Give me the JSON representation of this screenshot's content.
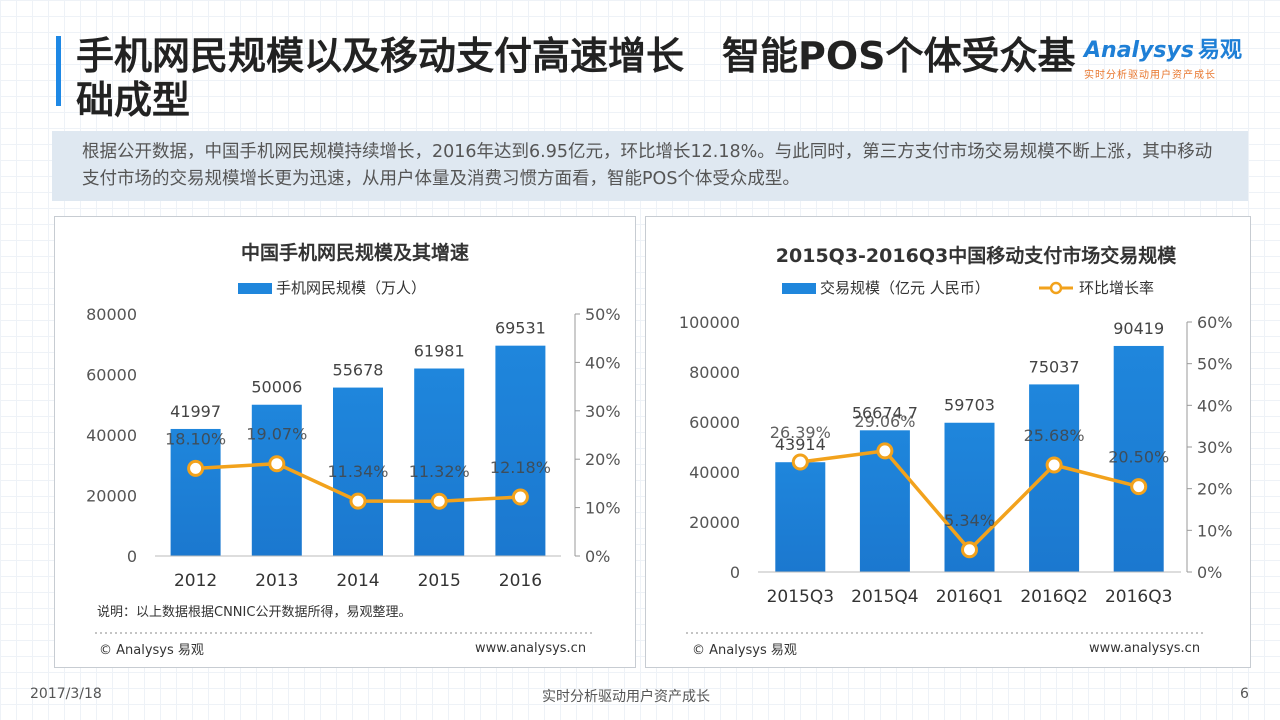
{
  "slide": {
    "title": "手机网民规模以及移动支付高速增长　智能POS个体受众基础成型",
    "logo": {
      "brand": "Analysys",
      "brand_cn": "易观",
      "slogan": "实时分析驱动用户资产成长"
    },
    "summary": "根据公开数据，中国手机网民规模持续增长，2016年达到6.95亿元，环比增长12.18%。与此同时，第三方支付市场交易规模不断上涨，其中移动支付市场的交易规模增长更为迅速，从用户体量及消费习惯方面看，智能POS个体受众成型。",
    "date": "2017/3/18",
    "footer_center": "实时分析驱动用户资产成长",
    "page_number": "6",
    "colors": {
      "bar": "#1f86dc",
      "line": "#f2a21c",
      "accent": "#1e88e5"
    }
  },
  "panels": [
    {
      "note": "说明：以上数据根据CNNIC公开数据所得，易观整理。",
      "copyright": "© Analysys 易观",
      "url": "www.analysys.cn"
    },
    {
      "note": "",
      "copyright": "© Analysys 易观",
      "url": "www.analysys.cn"
    }
  ],
  "chart_data": [
    {
      "type": "bar",
      "title": "中国手机网民规模及其增速",
      "categories": [
        "2012",
        "2013",
        "2014",
        "2015",
        "2016"
      ],
      "series": [
        {
          "name": "手机网民规模（万人）",
          "type": "bar",
          "axis": "left",
          "values": [
            41997,
            50006,
            55678,
            61981,
            69531
          ],
          "labels": [
            "41997",
            "50006",
            "55678",
            "61981",
            "69531"
          ]
        },
        {
          "name": "",
          "type": "line",
          "axis": "right",
          "values": [
            18.1,
            19.07,
            11.34,
            11.32,
            12.18
          ],
          "labels": [
            "18.10%",
            "19.07%",
            "11.34%",
            "11.32%",
            "12.18%"
          ]
        }
      ],
      "y_left": {
        "min": 0,
        "max": 80000,
        "ticks": [
          "0",
          "20000",
          "40000",
          "60000",
          "80000"
        ]
      },
      "y_right": {
        "min": 0,
        "max": 50,
        "ticks": [
          "0%",
          "10%",
          "20%",
          "30%",
          "40%",
          "50%"
        ]
      },
      "legend": "top"
    },
    {
      "type": "bar",
      "title": "2015Q3-2016Q3中国移动支付市场交易规模",
      "categories": [
        "2015Q3",
        "2015Q4",
        "2016Q1",
        "2016Q2",
        "2016Q3"
      ],
      "series": [
        {
          "name": "交易规模（亿元 人民币）",
          "type": "bar",
          "axis": "left",
          "values": [
            43914,
            56674.7,
            59703,
            75037,
            90419
          ],
          "labels": [
            "43914",
            "56674.7",
            "59703",
            "75037",
            "90419"
          ]
        },
        {
          "name": "环比增长率",
          "type": "line",
          "axis": "right",
          "values": [
            26.39,
            29.06,
            5.34,
            25.68,
            20.5
          ],
          "labels": [
            "26.39%",
            "29.06%",
            "5.34%",
            "25.68%",
            "20.50%"
          ]
        }
      ],
      "y_left": {
        "min": 0,
        "max": 100000,
        "ticks": [
          "0",
          "20000",
          "40000",
          "60000",
          "80000",
          "100000"
        ]
      },
      "y_right": {
        "min": 0,
        "max": 60,
        "ticks": [
          "0%",
          "10%",
          "20%",
          "30%",
          "40%",
          "50%",
          "60%"
        ]
      },
      "legend": "top"
    }
  ]
}
